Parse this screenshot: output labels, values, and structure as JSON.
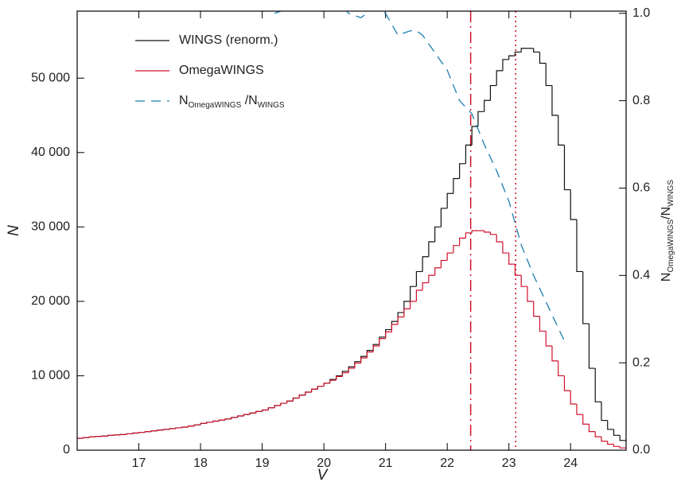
{
  "chart_data": {
    "type": "histogram",
    "xlabel": "V",
    "ylabel": "N",
    "y2label": [
      {
        "text": "N"
      },
      {
        "text": "OmegaWINGS",
        "sub": true
      },
      {
        "text": "/N"
      },
      {
        "text": "WINGS",
        "sub": true
      }
    ],
    "xlim": [
      16.0,
      24.9
    ],
    "xticks": [
      17,
      18,
      19,
      20,
      21,
      22,
      23,
      24
    ],
    "ylim": [
      0,
      59000
    ],
    "yticks": [
      0,
      {
        "value": 10000,
        "label": "10 000"
      },
      {
        "value": 20000,
        "label": "20 000"
      },
      {
        "value": 30000,
        "label": "30 000"
      },
      {
        "value": 40000,
        "label": "40 000"
      },
      {
        "value": 50000,
        "label": "50 000"
      }
    ],
    "y2lim": [
      0,
      1.005
    ],
    "y2ticks": [
      {
        "value": 0,
        "label": "0.0"
      },
      0.2,
      0.4,
      0.6,
      0.8,
      {
        "value": 1,
        "label": "1.0"
      }
    ],
    "bins": [
      16.0,
      16.1,
      16.2,
      16.3,
      16.4,
      16.5,
      16.6,
      16.7,
      16.8,
      16.9,
      17.0,
      17.1,
      17.2,
      17.3,
      17.4,
      17.5,
      17.6,
      17.7,
      17.8,
      17.9,
      18.0,
      18.1,
      18.2,
      18.3,
      18.4,
      18.5,
      18.6,
      18.7,
      18.8,
      18.9,
      19.0,
      19.1,
      19.2,
      19.3,
      19.4,
      19.5,
      19.6,
      19.7,
      19.8,
      19.9,
      20.0,
      20.1,
      20.2,
      20.3,
      20.4,
      20.5,
      20.6,
      20.7,
      20.8,
      20.9,
      21.0,
      21.1,
      21.2,
      21.3,
      21.4,
      21.5,
      21.6,
      21.7,
      21.8,
      21.9,
      22.0,
      22.1,
      22.2,
      22.3,
      22.4,
      22.5,
      22.6,
      22.7,
      22.8,
      22.9,
      23.0,
      23.1,
      23.2,
      23.3,
      23.4,
      23.5,
      23.6,
      23.7,
      23.8,
      23.9,
      24.0,
      24.1,
      24.2,
      24.3,
      24.4,
      24.5,
      24.6,
      24.7,
      24.8,
      24.9
    ],
    "series": [
      {
        "name": [
          {
            "text": "WINGS (renorm.)"
          }
        ],
        "color": "#111111",
        "values": [
          1600,
          1700,
          1800,
          1850,
          1900,
          2000,
          2050,
          2100,
          2200,
          2300,
          2400,
          2500,
          2600,
          2700,
          2800,
          2900,
          3000,
          3100,
          3250,
          3400,
          3600,
          3750,
          3900,
          4050,
          4200,
          4400,
          4600,
          4800,
          5000,
          5200,
          5400,
          5700,
          6000,
          6300,
          6600,
          7000,
          7400,
          7800,
          8200,
          8600,
          9000,
          9500,
          10000,
          10600,
          11200,
          11900,
          12600,
          13400,
          14200,
          15200,
          16200,
          17300,
          18500,
          20000,
          22000,
          24000,
          26000,
          28000,
          30000,
          32500,
          34500,
          36500,
          38500,
          41000,
          43500,
          45500,
          47000,
          49000,
          51000,
          52500,
          53000,
          53500,
          54000,
          54000,
          53500,
          52000,
          49000,
          45000,
          41000,
          35000,
          31000,
          24000,
          17000,
          11000,
          6500,
          4000,
          2800,
          2000,
          1300
        ]
      },
      {
        "name": [
          {
            "text": "OmegaWINGS"
          }
        ],
        "color": "#d0112b",
        "values": [
          1600,
          1700,
          1800,
          1850,
          1900,
          2000,
          2050,
          2100,
          2200,
          2300,
          2400,
          2500,
          2600,
          2700,
          2800,
          2900,
          3000,
          3100,
          3250,
          3400,
          3600,
          3750,
          3900,
          4050,
          4200,
          4400,
          4600,
          4800,
          5000,
          5200,
          5400,
          5700,
          6000,
          6300,
          6600,
          7000,
          7400,
          7800,
          8200,
          8600,
          9000,
          9400,
          9900,
          10400,
          11000,
          11700,
          12400,
          13200,
          14000,
          15000,
          15900,
          16900,
          17900,
          19000,
          20000,
          21500,
          22500,
          23500,
          24500,
          25500,
          26500,
          27500,
          28500,
          29200,
          29500,
          29500,
          29300,
          29000,
          28000,
          26500,
          25000,
          23500,
          22000,
          20000,
          18000,
          16000,
          14000,
          12000,
          10000,
          8000,
          6200,
          4800,
          3500,
          2500,
          1800,
          1200,
          800,
          500,
          300
        ]
      },
      {
        "name": [
          {
            "text": "N"
          },
          {
            "text": "OmegaWINGS",
            "sub": true
          },
          {
            "text": " /N"
          },
          {
            "text": "WINGS",
            "sub": true
          }
        ],
        "color": "#1a7db0",
        "axis": "y2",
        "dash": "dashed",
        "x": [
          19.2,
          19.4,
          19.6,
          19.8,
          20.0,
          20.2,
          20.4,
          20.6,
          20.8,
          21.0,
          21.2,
          21.4,
          21.5,
          21.6,
          21.8,
          22.0,
          22.2,
          22.4,
          22.6,
          22.8,
          23.0,
          23.2,
          23.4,
          23.6,
          23.8,
          23.9
        ],
        "values": [
          1.0,
          1.01,
          1.03,
          1.02,
          1.01,
          1.03,
          1.0,
          0.99,
          1.01,
          1.0,
          0.95,
          0.96,
          0.96,
          0.95,
          0.91,
          0.87,
          0.8,
          0.77,
          0.7,
          0.64,
          0.57,
          0.47,
          0.4,
          0.34,
          0.28,
          0.25
        ]
      }
    ],
    "vlines": [
      {
        "x": 22.38,
        "color": "#d0112b",
        "dash": "dashdot"
      },
      {
        "x": 23.11,
        "color": "#d0112b",
        "dash": "dotted"
      }
    ],
    "legend": "upper left"
  }
}
